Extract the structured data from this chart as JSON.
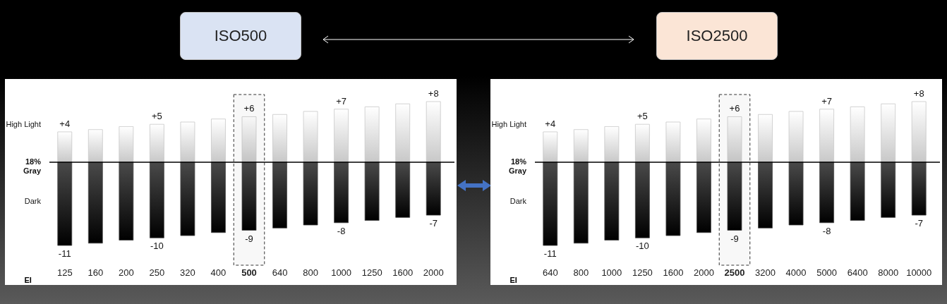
{
  "chart_data": [
    {
      "type": "bar",
      "title": "ISO500",
      "xlabel": "EI",
      "stacked": true,
      "categories": [
        "125",
        "160",
        "200",
        "250",
        "320",
        "400",
        "500",
        "640",
        "800",
        "1000",
        "1250",
        "1600",
        "2000"
      ],
      "series": [
        {
          "color": "#c8c8c8",
          "values": [
            4,
            4.3,
            4.7,
            5,
            5.3,
            5.7,
            6,
            6.3,
            6.7,
            7,
            7.3,
            7.7,
            8
          ],
          "value_labels": [
            "+4",
            null,
            null,
            "+5",
            null,
            null,
            "+6",
            null,
            null,
            "+7",
            null,
            null,
            "+8"
          ]
        },
        {
          "color": "#4a4a4a",
          "values": [
            -11,
            -10.7,
            -10.3,
            -10,
            -9.7,
            -9.3,
            -9,
            -8.7,
            -8.3,
            -8,
            -7.7,
            -7.3,
            -7
          ],
          "value_labels": [
            "-11",
            null,
            null,
            "-10",
            null,
            null,
            "-9",
            null,
            null,
            "-8",
            null,
            null,
            "-7"
          ]
        }
      ],
      "ref_lines": [
        {
          "axis": "y",
          "value": 0,
          "label": "18%\nGray",
          "color": "#000000"
        }
      ],
      "bands": [
        {
          "axis": "x",
          "from": "500",
          "to": "500"
        }
      ],
      "annotations": [
        "High Light",
        "Dark"
      ]
    },
    {
      "type": "bar",
      "title": "ISO2500",
      "xlabel": "EI",
      "stacked": true,
      "categories": [
        "640",
        "800",
        "1000",
        "1250",
        "1600",
        "2000",
        "2500",
        "3200",
        "4000",
        "5000",
        "6400",
        "8000",
        "10000"
      ],
      "series": [
        {
          "color": "#c8c8c8",
          "values": [
            4,
            4.3,
            4.7,
            5,
            5.3,
            5.7,
            6,
            6.3,
            6.7,
            7,
            7.3,
            7.7,
            8
          ],
          "value_labels": [
            "+4",
            null,
            null,
            "+5",
            null,
            null,
            "+6",
            null,
            null,
            "+7",
            null,
            null,
            "+8"
          ]
        },
        {
          "color": "#4a4a4a",
          "values": [
            -11,
            -10.7,
            -10.3,
            -10,
            -9.7,
            -9.3,
            -9,
            -8.7,
            -8.3,
            -8,
            -7.7,
            -7.3,
            -7
          ],
          "value_labels": [
            "-11",
            null,
            null,
            "-10",
            null,
            null,
            "-9",
            null,
            null,
            "-8",
            null,
            null,
            "-7"
          ]
        }
      ],
      "ref_lines": [
        {
          "axis": "y",
          "value": 0,
          "label": "18%\nGray",
          "color": "#000000"
        }
      ],
      "bands": [
        {
          "axis": "x",
          "from": "2500",
          "to": "2500"
        }
      ],
      "annotations": [
        "High Light",
        "Dark"
      ]
    }
  ]
}
